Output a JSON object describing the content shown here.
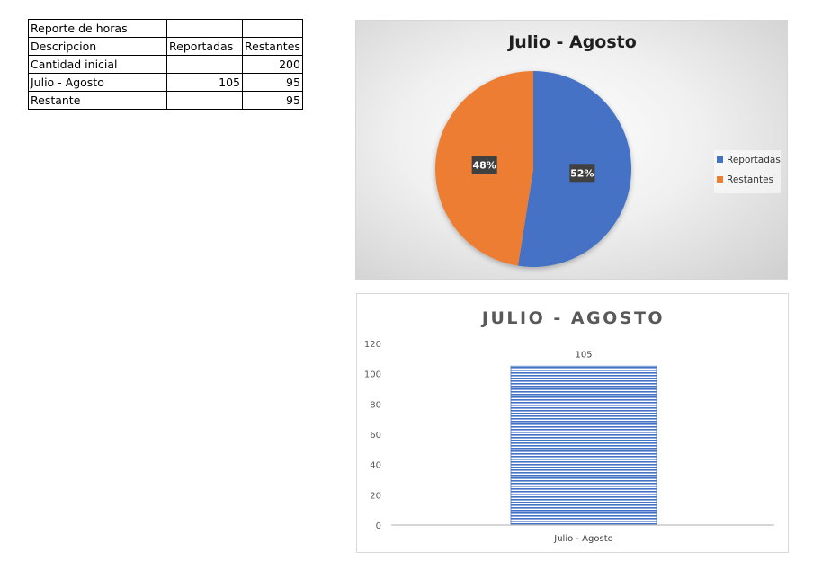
{
  "sheet": {
    "rows": [
      [
        "Reporte de horas",
        "",
        ""
      ],
      [
        "Descripcion",
        "Reportadas",
        "Restantes"
      ],
      [
        "Cantidad inicial",
        "",
        "200"
      ],
      [
        "Julio - Agosto",
        "105",
        "95"
      ],
      [
        "Restante",
        "",
        "95"
      ]
    ]
  },
  "chart_data": [
    {
      "type": "pie",
      "title": "Julio - Agosto",
      "categories": [
        "Reportadas",
        "Restantes"
      ],
      "values": [
        105,
        95
      ],
      "data_labels": [
        "52%",
        "48%"
      ],
      "colors": [
        "#4472c4",
        "#ed7d31"
      ],
      "legend": "right"
    },
    {
      "type": "bar",
      "title": "JULIO - AGOSTO",
      "categories": [
        "Julio - Agosto"
      ],
      "values": [
        105
      ],
      "data_labels": [
        "105"
      ],
      "ylim": [
        0,
        120
      ],
      "yticks": [
        "0",
        "20",
        "40",
        "60",
        "80",
        "100",
        "120"
      ],
      "grid": false,
      "legend": "none",
      "colors": [
        "#4472c4"
      ]
    }
  ]
}
